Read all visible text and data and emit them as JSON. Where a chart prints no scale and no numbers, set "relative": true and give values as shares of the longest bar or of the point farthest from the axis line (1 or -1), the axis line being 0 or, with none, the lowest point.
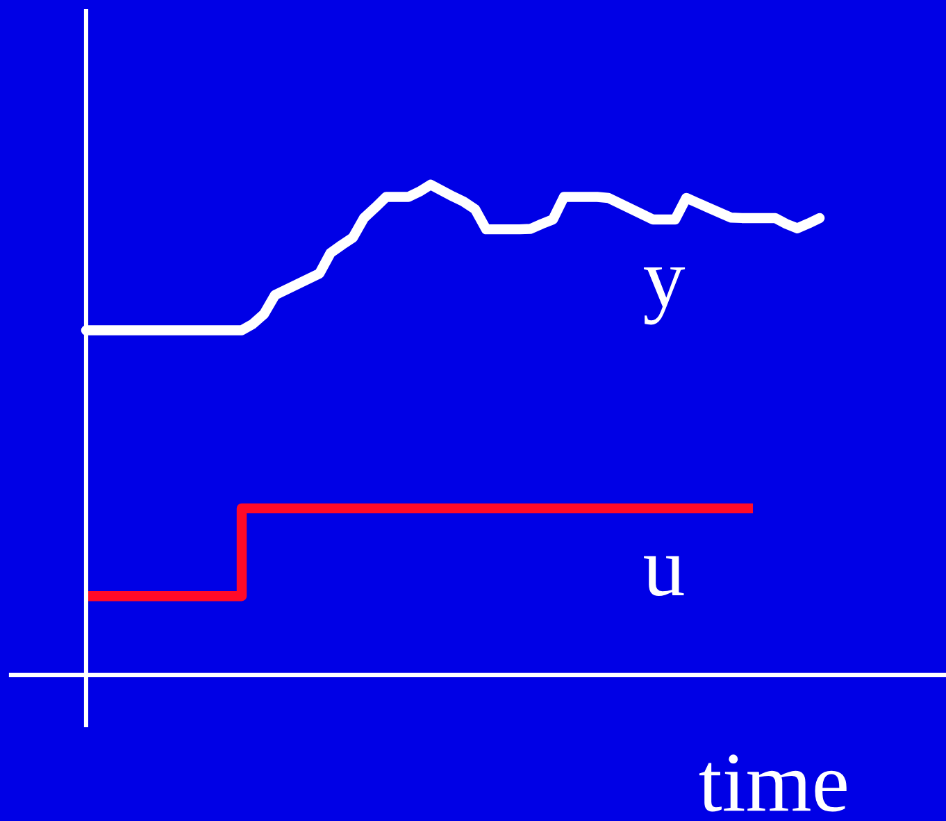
{
  "chart_data": {
    "type": "line",
    "relative": true,
    "xlabel": "time",
    "categories": [
      null,
      null,
      null,
      null,
      null,
      null,
      null,
      null,
      null,
      null,
      null,
      null,
      null,
      null,
      null,
      null,
      null,
      null,
      null,
      null,
      null,
      null,
      null,
      null,
      null,
      null,
      null,
      null,
      null,
      null,
      null,
      null,
      null,
      null,
      null,
      null,
      null,
      null,
      null,
      null,
      null,
      null,
      null,
      null,
      null,
      null,
      null,
      null,
      null,
      null,
      null,
      null,
      null,
      null,
      null,
      null,
      null,
      null,
      null,
      null,
      null,
      null,
      null,
      null,
      null,
      null,
      null
    ],
    "series": [
      {
        "name": "y",
        "color": "#ffffff",
        "values": [
          0.703,
          0.703,
          0.703,
          0.703,
          0.703,
          0.703,
          0.703,
          0.703,
          0.703,
          0.703,
          0.703,
          0.703,
          0.703,
          0.703,
          0.703,
          0.716,
          0.736,
          0.775,
          0.786,
          0.797,
          0.808,
          0.819,
          0.861,
          0.877,
          0.892,
          0.932,
          0.953,
          0.975,
          0.975,
          0.975,
          0.986,
          1.0,
          0.988,
          0.976,
          0.965,
          0.95,
          0.909,
          0.909,
          0.909,
          0.909,
          0.91,
          0.92,
          0.929,
          0.975,
          0.975,
          0.975,
          0.975,
          0.973,
          0.962,
          0.951,
          0.94,
          0.929,
          0.929,
          0.929,
          0.973,
          0.963,
          0.953,
          0.943,
          0.933,
          0.932,
          0.932,
          0.932,
          0.932,
          0.92,
          0.911,
          0.921,
          0.932
        ]
      },
      {
        "name": "u",
        "type": "step",
        "color": "#ff0a28",
        "values": [
          0.161,
          0.161,
          0.161,
          0.161,
          0.161,
          0.161,
          0.161,
          0.161,
          0.161,
          0.161,
          0.161,
          0.161,
          0.161,
          0.161,
          0.34,
          0.34,
          0.34,
          0.34,
          0.34,
          0.34,
          0.34,
          0.34,
          0.34,
          0.34,
          0.34,
          0.34,
          0.34,
          0.34,
          0.34,
          0.34,
          0.34,
          0.34,
          0.34,
          0.34,
          0.34,
          0.34,
          0.34,
          0.34,
          0.34,
          0.34,
          0.34,
          0.34,
          0.34,
          0.34,
          0.34,
          0.34,
          0.34,
          0.34,
          0.34,
          0.34,
          0.34,
          0.34,
          0.34,
          0.34,
          0.34,
          0.34,
          0.34,
          0.34,
          0.34,
          0.34,
          0.34,
          null,
          null,
          null,
          null,
          null,
          null
        ]
      }
    ]
  }
}
